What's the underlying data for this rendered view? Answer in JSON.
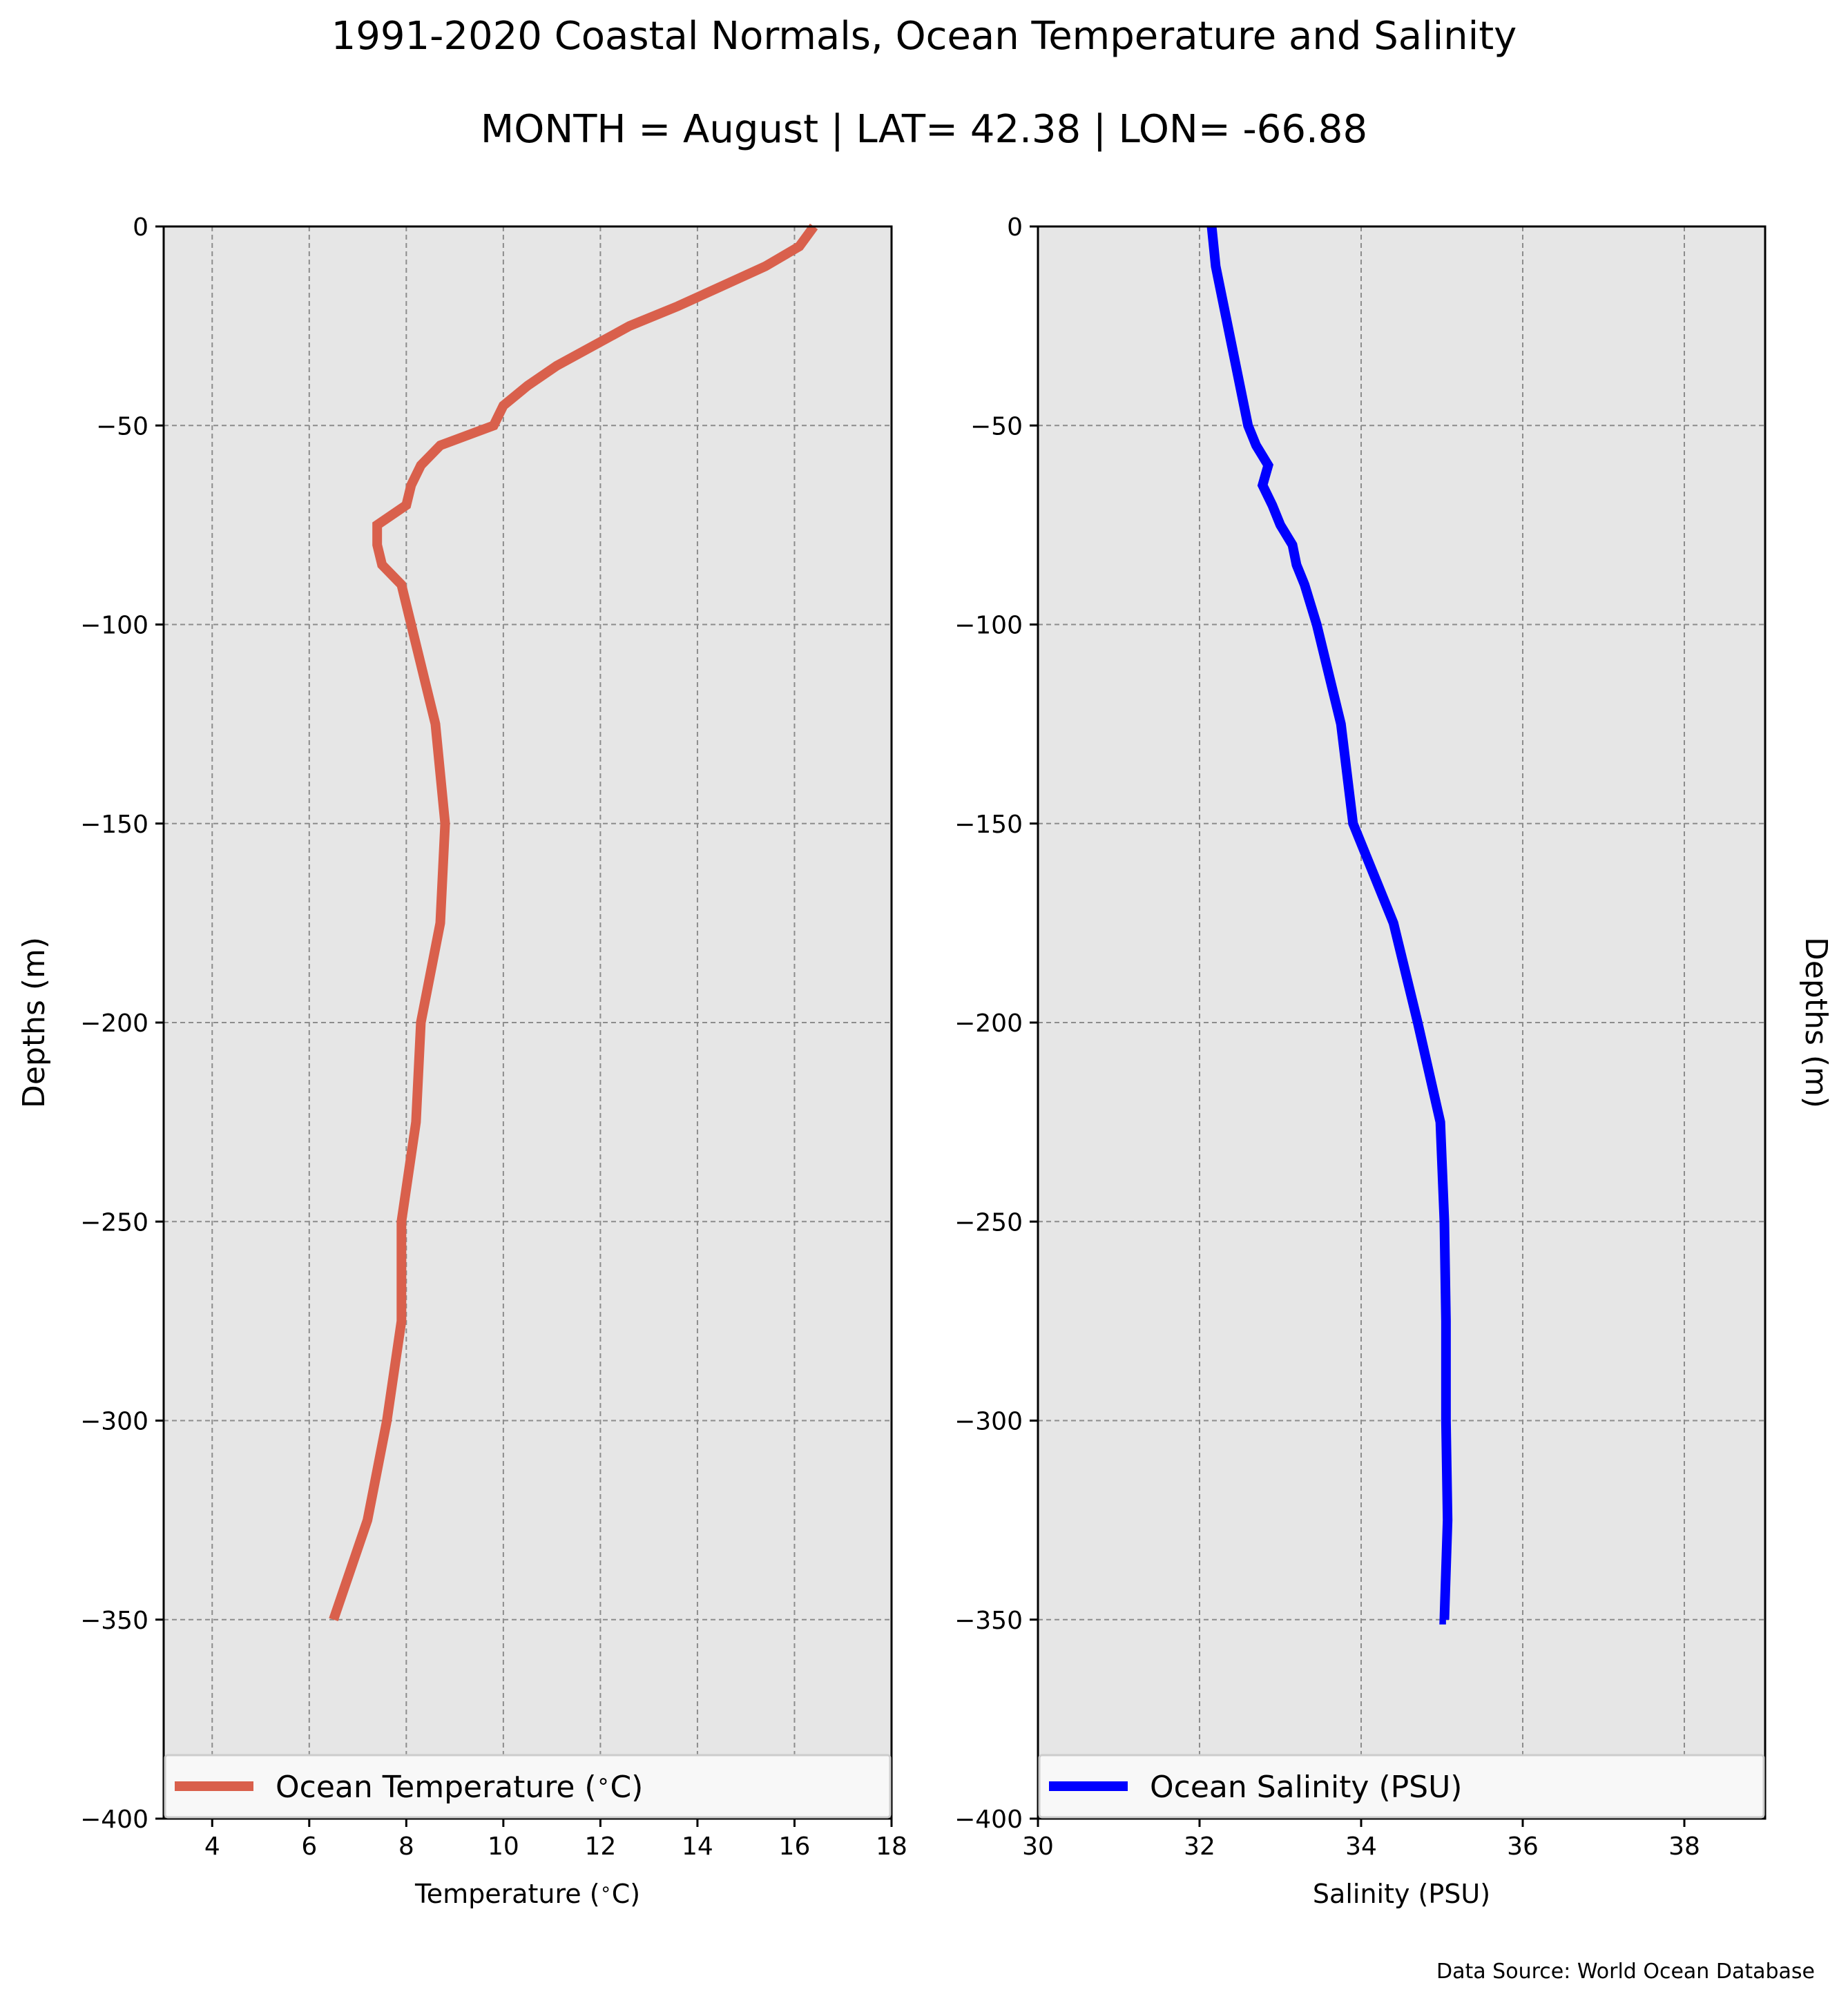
{
  "figure": {
    "title": "1991-2020 Coastal Normals, Ocean Temperature and Salinity",
    "subtitle": "MONTH = August | LAT= 42.38 | LON= -66.88",
    "source": "Data Source: World Ocean Database"
  },
  "chart_data": [
    {
      "type": "line",
      "xlabel": "Temperature ($^\\circ$C)",
      "ylabel": "Depths (m)",
      "xlim": [
        3,
        18
      ],
      "ylim": [
        -400,
        0
      ],
      "xticks": [
        4,
        6,
        8,
        10,
        12,
        14,
        16,
        18
      ],
      "yticks": [
        0,
        -50,
        -100,
        -150,
        -200,
        -250,
        -300,
        -350,
        -400
      ],
      "grid": true,
      "legend": "bottom",
      "series": [
        {
          "name": "Ocean Temperature ($^\\circ$C)",
          "color": "#d9604c",
          "x": [
            16.4,
            16.1,
            15.4,
            14.5,
            13.6,
            12.6,
            11.1,
            10.5,
            10.0,
            9.8,
            8.7,
            8.3,
            8.1,
            8.0,
            7.4,
            7.4,
            7.5,
            7.9,
            8.1,
            8.6,
            8.8,
            8.7,
            8.3,
            8.2,
            7.9,
            7.9,
            7.6,
            7.2,
            6.5
          ],
          "y": [
            0,
            -5,
            -10,
            -15,
            -20,
            -25,
            -35,
            -40,
            -45,
            -50,
            -55,
            -60,
            -65,
            -70,
            -75,
            -80,
            -85,
            -90,
            -100,
            -125,
            -150,
            -175,
            -200,
            -225,
            -250,
            -275,
            -300,
            -325,
            -350
          ]
        }
      ]
    },
    {
      "type": "line",
      "xlabel": "Salinity (PSU)",
      "ylabel": "Depths (m)",
      "xlim": [
        30,
        39
      ],
      "ylim": [
        -400,
        0
      ],
      "xticks": [
        30,
        32,
        34,
        36,
        38
      ],
      "yticks": [
        0,
        -50,
        -100,
        -150,
        -200,
        -250,
        -300,
        -350,
        -400
      ],
      "grid": true,
      "legend": "bottom",
      "series": [
        {
          "name": "Ocean Salinity (PSU)",
          "color": "#0000ff",
          "x": [
            32.15,
            32.2,
            32.3,
            32.4,
            32.5,
            32.6,
            32.7,
            32.85,
            32.78,
            32.9,
            33.0,
            33.15,
            33.2,
            33.3,
            33.45,
            33.75,
            33.9,
            34.4,
            34.7,
            34.98,
            35.03,
            35.05,
            35.05,
            35.07,
            35.03,
            35.05,
            35.02
          ],
          "y": [
            0,
            -10,
            -20,
            -30,
            -40,
            -50,
            -55,
            -60,
            -65,
            -70,
            -75,
            -80,
            -85,
            -90,
            -100,
            -125,
            -150,
            -175,
            -200,
            -225,
            -250,
            -275,
            -300,
            -325,
            -350,
            -350,
            -350
          ]
        }
      ]
    }
  ]
}
